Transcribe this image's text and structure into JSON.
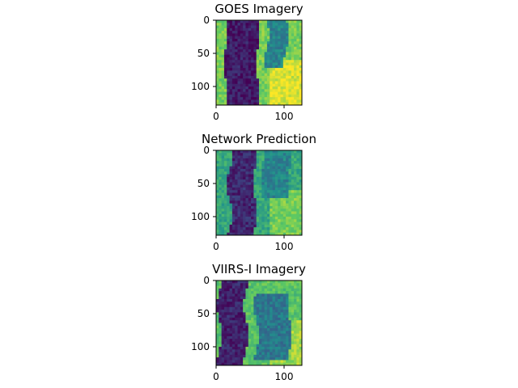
{
  "chart_data": [
    {
      "type": "heatmap",
      "title": "GOES Imagery",
      "colormap": "viridis",
      "grid": false,
      "xlim": [
        0,
        128
      ],
      "ylim": [
        128,
        0
      ],
      "xticks": [
        0,
        100
      ],
      "yticks": [
        0,
        50,
        100
      ],
      "pattern": {
        "bands": [
          {
            "x_start": 14,
            "x_end": 62,
            "level": 0.08
          },
          {
            "x_start": 75,
            "x_end": 105,
            "level": 0.45,
            "y_start": 0,
            "y_end": 70
          }
        ],
        "background_level": 0.78,
        "lower_right_level": 0.95
      }
    },
    {
      "type": "heatmap",
      "title": "Network Prediction",
      "colormap": "viridis",
      "grid": false,
      "xlim": [
        0,
        128
      ],
      "ylim": [
        128,
        0
      ],
      "xticks": [
        0,
        100
      ],
      "yticks": [
        0,
        50,
        100
      ],
      "pattern": {
        "bands": [
          {
            "x_start": 20,
            "x_end": 58,
            "level": 0.12
          },
          {
            "x_start": 70,
            "x_end": 110,
            "level": 0.45,
            "y_start": 0,
            "y_end": 70
          }
        ],
        "background_level": 0.6,
        "lower_right_level": 0.78
      }
    },
    {
      "type": "heatmap",
      "title": "VIIRS-I Imagery",
      "colormap": "viridis",
      "grid": false,
      "xlim": [
        0,
        128
      ],
      "ylim": [
        128,
        0
      ],
      "xticks": [
        0,
        100
      ],
      "yticks": [
        0,
        50,
        100
      ],
      "pattern": {
        "bands": [
          {
            "x_start": 5,
            "x_end": 45,
            "level": 0.1
          },
          {
            "x_start": 60,
            "x_end": 110,
            "level": 0.4,
            "y_start": 20,
            "y_end": 120
          }
        ],
        "background_level": 0.72,
        "lower_right_level": 0.85
      }
    }
  ]
}
